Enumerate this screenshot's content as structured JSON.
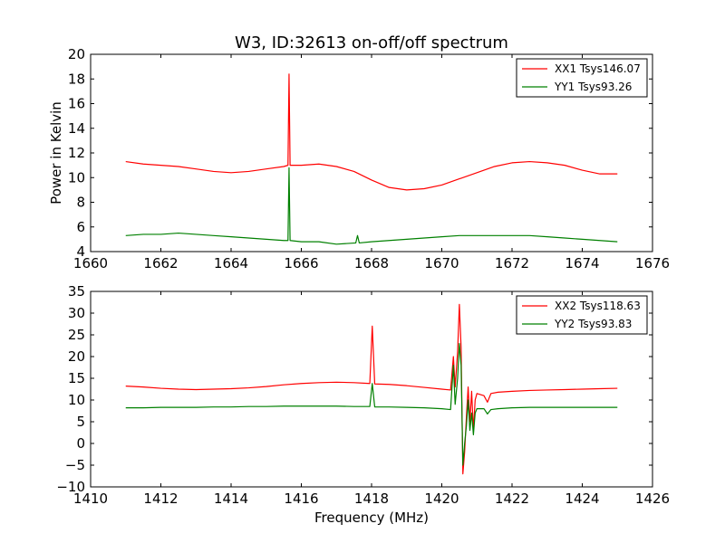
{
  "chart_data": [
    {
      "type": "line",
      "title": "W3, ID:32613 on-off/off spectrum",
      "xlabel": "",
      "ylabel": "Power in Kelvin",
      "xlim": [
        1660,
        1676
      ],
      "ylim": [
        4,
        20
      ],
      "xticks": [
        "1660",
        "1662",
        "1664",
        "1666",
        "1668",
        "1670",
        "1672",
        "1674",
        "1676"
      ],
      "yticks": [
        "4",
        "6",
        "8",
        "10",
        "12",
        "14",
        "16",
        "18",
        "20"
      ],
      "legend_position": "top-right",
      "series": [
        {
          "name": "XX1 Tsys146.07",
          "color": "#ff0000",
          "points": [
            [
              1661.0,
              11.3
            ],
            [
              1661.5,
              11.1
            ],
            [
              1662.0,
              11.0
            ],
            [
              1662.5,
              10.9
            ],
            [
              1663.0,
              10.7
            ],
            [
              1663.5,
              10.5
            ],
            [
              1664.0,
              10.4
            ],
            [
              1664.5,
              10.5
            ],
            [
              1665.0,
              10.7
            ],
            [
              1665.5,
              10.9
            ],
            [
              1665.62,
              11.0
            ],
            [
              1665.65,
              18.4
            ],
            [
              1665.68,
              11.0
            ],
            [
              1666.0,
              11.0
            ],
            [
              1666.5,
              11.1
            ],
            [
              1667.0,
              10.9
            ],
            [
              1667.5,
              10.5
            ],
            [
              1668.0,
              9.8
            ],
            [
              1668.5,
              9.2
            ],
            [
              1669.0,
              9.0
            ],
            [
              1669.5,
              9.1
            ],
            [
              1670.0,
              9.4
            ],
            [
              1670.5,
              9.9
            ],
            [
              1671.0,
              10.4
            ],
            [
              1671.5,
              10.9
            ],
            [
              1672.0,
              11.2
            ],
            [
              1672.5,
              11.3
            ],
            [
              1673.0,
              11.2
            ],
            [
              1673.5,
              11.0
            ],
            [
              1674.0,
              10.6
            ],
            [
              1674.5,
              10.3
            ],
            [
              1675.0,
              10.3
            ]
          ]
        },
        {
          "name": "YY1 Tsys93.26",
          "color": "#008000",
          "points": [
            [
              1661.0,
              5.3
            ],
            [
              1661.5,
              5.4
            ],
            [
              1662.0,
              5.4
            ],
            [
              1662.5,
              5.5
            ],
            [
              1663.0,
              5.4
            ],
            [
              1663.5,
              5.3
            ],
            [
              1664.0,
              5.2
            ],
            [
              1664.5,
              5.1
            ],
            [
              1665.0,
              5.0
            ],
            [
              1665.5,
              4.9
            ],
            [
              1665.62,
              4.9
            ],
            [
              1665.65,
              10.8
            ],
            [
              1665.68,
              4.9
            ],
            [
              1666.0,
              4.8
            ],
            [
              1666.5,
              4.8
            ],
            [
              1667.0,
              4.6
            ],
            [
              1667.55,
              4.7
            ],
            [
              1667.6,
              5.3
            ],
            [
              1667.65,
              4.7
            ],
            [
              1668.0,
              4.8
            ],
            [
              1668.5,
              4.9
            ],
            [
              1669.0,
              5.0
            ],
            [
              1669.5,
              5.1
            ],
            [
              1670.0,
              5.2
            ],
            [
              1670.5,
              5.3
            ],
            [
              1671.0,
              5.3
            ],
            [
              1671.5,
              5.3
            ],
            [
              1672.0,
              5.3
            ],
            [
              1672.5,
              5.3
            ],
            [
              1673.0,
              5.2
            ],
            [
              1673.5,
              5.1
            ],
            [
              1674.0,
              5.0
            ],
            [
              1674.5,
              4.9
            ],
            [
              1675.0,
              4.8
            ]
          ]
        }
      ]
    },
    {
      "type": "line",
      "title": "",
      "xlabel": "Frequency (MHz)",
      "ylabel": "",
      "xlim": [
        1410,
        1426
      ],
      "ylim": [
        -10,
        35
      ],
      "xticks": [
        "1410",
        "1412",
        "1414",
        "1416",
        "1418",
        "1420",
        "1422",
        "1424",
        "1426"
      ],
      "yticks": [
        "−10",
        "−5",
        "0",
        "5",
        "10",
        "15",
        "20",
        "25",
        "30",
        "35"
      ],
      "legend_position": "top-right",
      "series": [
        {
          "name": "XX2 Tsys118.63",
          "color": "#ff0000",
          "points": [
            [
              1411.0,
              13.2
            ],
            [
              1411.5,
              13.0
            ],
            [
              1412.0,
              12.7
            ],
            [
              1412.5,
              12.5
            ],
            [
              1413.0,
              12.4
            ],
            [
              1413.5,
              12.5
            ],
            [
              1414.0,
              12.6
            ],
            [
              1414.5,
              12.8
            ],
            [
              1415.0,
              13.1
            ],
            [
              1415.5,
              13.5
            ],
            [
              1416.0,
              13.8
            ],
            [
              1416.5,
              14.0
            ],
            [
              1417.0,
              14.1
            ],
            [
              1417.5,
              14.0
            ],
            [
              1417.95,
              13.8
            ],
            [
              1418.02,
              27.0
            ],
            [
              1418.09,
              13.7
            ],
            [
              1418.5,
              13.6
            ],
            [
              1419.0,
              13.3
            ],
            [
              1419.5,
              12.9
            ],
            [
              1420.0,
              12.5
            ],
            [
              1420.25,
              12.3
            ],
            [
              1420.33,
              20.0
            ],
            [
              1420.38,
              13.0
            ],
            [
              1420.45,
              21.0
            ],
            [
              1420.5,
              32.0
            ],
            [
              1420.55,
              22.0
            ],
            [
              1420.6,
              -7.0
            ],
            [
              1420.65,
              -2.0
            ],
            [
              1420.7,
              6.0
            ],
            [
              1420.75,
              13.0
            ],
            [
              1420.8,
              5.0
            ],
            [
              1420.85,
              12.0
            ],
            [
              1420.9,
              3.0
            ],
            [
              1420.95,
              10.0
            ],
            [
              1421.0,
              11.5
            ],
            [
              1421.2,
              11.0
            ],
            [
              1421.3,
              9.5
            ],
            [
              1421.4,
              11.5
            ],
            [
              1421.6,
              11.8
            ],
            [
              1422.0,
              12.0
            ],
            [
              1422.5,
              12.2
            ],
            [
              1423.0,
              12.3
            ],
            [
              1423.5,
              12.4
            ],
            [
              1424.0,
              12.5
            ],
            [
              1424.5,
              12.6
            ],
            [
              1425.0,
              12.7
            ]
          ]
        },
        {
          "name": "YY2 Tsys93.83",
          "color": "#008000",
          "points": [
            [
              1411.0,
              8.2
            ],
            [
              1411.5,
              8.2
            ],
            [
              1412.0,
              8.3
            ],
            [
              1412.5,
              8.3
            ],
            [
              1413.0,
              8.3
            ],
            [
              1413.5,
              8.4
            ],
            [
              1414.0,
              8.4
            ],
            [
              1414.5,
              8.5
            ],
            [
              1415.0,
              8.5
            ],
            [
              1415.5,
              8.6
            ],
            [
              1416.0,
              8.6
            ],
            [
              1416.5,
              8.6
            ],
            [
              1417.0,
              8.6
            ],
            [
              1417.5,
              8.5
            ],
            [
              1417.95,
              8.5
            ],
            [
              1418.02,
              13.8
            ],
            [
              1418.09,
              8.4
            ],
            [
              1418.5,
              8.4
            ],
            [
              1419.0,
              8.3
            ],
            [
              1419.5,
              8.2
            ],
            [
              1420.0,
              8.0
            ],
            [
              1420.25,
              7.8
            ],
            [
              1420.33,
              18.0
            ],
            [
              1420.38,
              9.0
            ],
            [
              1420.45,
              15.0
            ],
            [
              1420.5,
              23.0
            ],
            [
              1420.55,
              18.0
            ],
            [
              1420.6,
              -5.0
            ],
            [
              1420.65,
              0.0
            ],
            [
              1420.7,
              4.0
            ],
            [
              1420.75,
              10.0
            ],
            [
              1420.8,
              3.0
            ],
            [
              1420.85,
              7.0
            ],
            [
              1420.9,
              2.0
            ],
            [
              1420.95,
              7.0
            ],
            [
              1421.0,
              8.0
            ],
            [
              1421.2,
              8.0
            ],
            [
              1421.3,
              6.8
            ],
            [
              1421.4,
              7.8
            ],
            [
              1421.6,
              8.0
            ],
            [
              1422.0,
              8.2
            ],
            [
              1422.5,
              8.3
            ],
            [
              1423.0,
              8.3
            ],
            [
              1423.5,
              8.3
            ],
            [
              1424.0,
              8.3
            ],
            [
              1424.5,
              8.3
            ],
            [
              1425.0,
              8.3
            ]
          ]
        }
      ]
    }
  ]
}
